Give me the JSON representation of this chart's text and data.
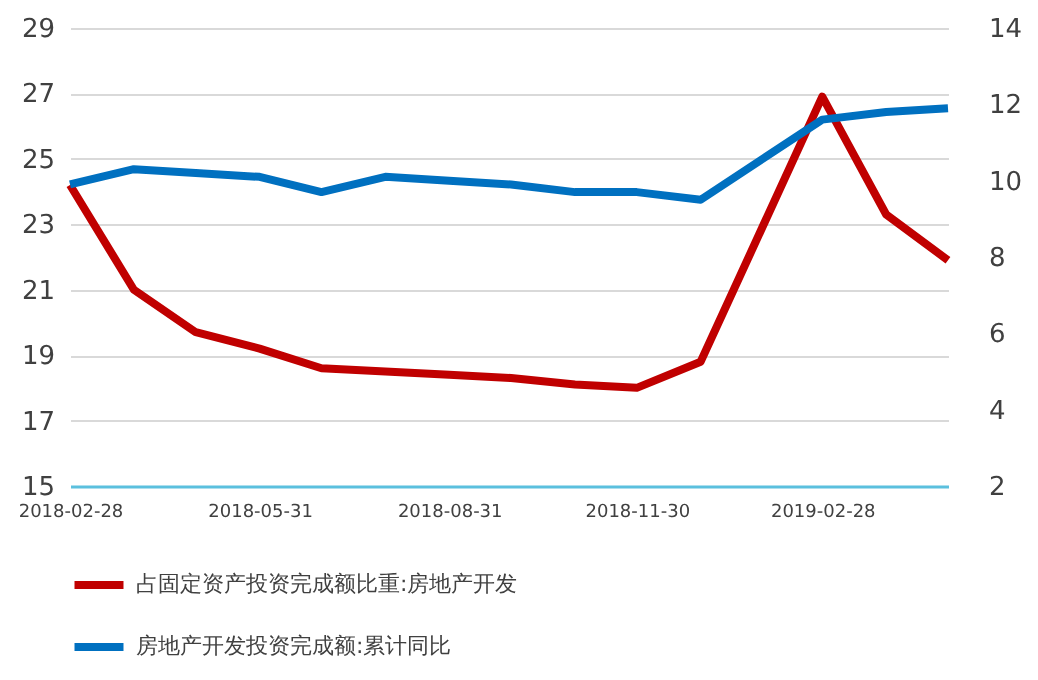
{
  "chart_data": {
    "type": "line",
    "x": [
      "2018-02-28",
      "2018-03-31",
      "2018-04-30",
      "2018-05-31",
      "2018-06-30",
      "2018-07-31",
      "2018-08-31",
      "2018-09-30",
      "2018-10-31",
      "2018-11-30",
      "2018-12-31",
      "2019-02-28",
      "2019-03-31",
      "2019-04-30"
    ],
    "series": [
      {
        "name": "占固定资产投资完成额比重:房地产开发",
        "color": "#c00000",
        "values": [
          24.2,
          21.0,
          19.7,
          19.2,
          18.6,
          18.5,
          18.4,
          18.3,
          18.1,
          18.0,
          18.8,
          26.9,
          23.3,
          21.9
        ]
      },
      {
        "name": "房地产开发投资完成额:累计同比",
        "color": "#0070c0",
        "axis": "y2",
        "values": [
          9.9,
          10.3,
          10.2,
          10.1,
          9.7,
          10.1,
          10.0,
          9.9,
          9.7,
          9.7,
          9.5,
          11.6,
          11.8,
          11.9
        ]
      }
    ],
    "xlim": [
      "2018-02-28",
      "2019-04-30"
    ],
    "xticks": [
      "2018-02-28",
      "2018-05-31",
      "2018-08-31",
      "2018-11-30",
      "2019-02-28"
    ],
    "ylim": [
      15,
      29
    ],
    "yticks": [
      15,
      17,
      19,
      21,
      23,
      25,
      27,
      29
    ],
    "y2lim": [
      2,
      14
    ],
    "y2ticks": [
      2,
      4,
      6,
      8,
      10,
      12,
      14
    ],
    "grid": "y",
    "legend": "bottom",
    "line_style": "solid",
    "marker": "none"
  }
}
